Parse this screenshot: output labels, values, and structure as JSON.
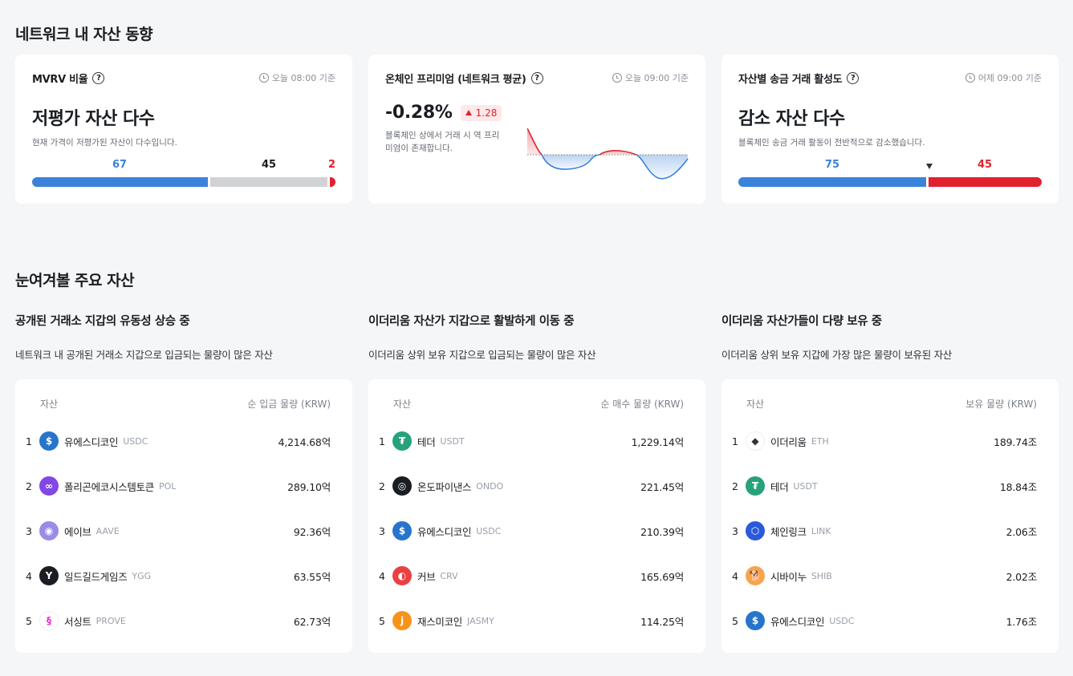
{
  "network": {
    "title": "네트워크 내 자산 동향",
    "mvrv": {
      "title": "MVRV 비율",
      "time": "오늘 08:00 기준",
      "value": "저평가 자산 다수",
      "desc": "현재 가격이 저평가된 자산이 다수입니다.",
      "undervalued": 67,
      "neutral": 45,
      "overvalued": 2,
      "colors": {
        "undervalued": "#3b82db",
        "neutral": "#d0d2d5",
        "overvalued": "#e0222e"
      }
    },
    "premium": {
      "title": "온체인 프리미엄 (네트워크 평균)",
      "time": "오늘 09:00 기준",
      "value": "-0.28%",
      "change": "1.28",
      "desc": "블록체인 상에서 거래 시 역 프리미엄이 존재합니다."
    },
    "activity": {
      "title": "자산별 송금 거래 활성도",
      "time": "어제 09:00 기준",
      "value": "감소 자산 다수",
      "desc": "블록체인 송금 거래 활동이 전반적으로 감소했습니다.",
      "decreased": 75,
      "increased": 45
    }
  },
  "watch": {
    "title": "눈여겨볼 주요 자산",
    "tables": [
      {
        "title": "공개된 거래소 지갑의 유동성 상승 중",
        "desc": "네트워크 내 공개된 거래소 지갑으로 입금되는 물량이 많은 자산",
        "col_asset": "자산",
        "col_value": "순 입금 물량 (KRW)",
        "rows": [
          {
            "rank": "1",
            "name": "유에스디코인",
            "symbol": "USDC",
            "value": "4,214.68억",
            "icon": "usdc-icon",
            "color": "#2775ca",
            "glyph": "$"
          },
          {
            "rank": "2",
            "name": "폴리곤에코시스템토큰",
            "symbol": "POL",
            "value": "289.10억",
            "icon": "pol-icon",
            "color": "#8247e5",
            "glyph": "∞"
          },
          {
            "rank": "3",
            "name": "에이브",
            "symbol": "AAVE",
            "value": "92.36억",
            "icon": "aave-icon",
            "color": "#9c8ae8",
            "glyph": "◉"
          },
          {
            "rank": "4",
            "name": "일드길드게임즈",
            "symbol": "YGG",
            "value": "63.55억",
            "icon": "ygg-icon",
            "color": "#1a1d21",
            "glyph": "Y"
          },
          {
            "rank": "5",
            "name": "서싱트",
            "symbol": "PROVE",
            "value": "62.73억",
            "icon": "prove-icon",
            "color": "#ffffff",
            "glyph": "§"
          }
        ]
      },
      {
        "title": "이더리움 자산가 지갑으로 활발하게 이동 중",
        "desc": "이더리움 상위 보유 지갑으로 입금되는 물량이 많은 자산",
        "col_asset": "자산",
        "col_value": "순 매수 물량 (KRW)",
        "rows": [
          {
            "rank": "1",
            "name": "테더",
            "symbol": "USDT",
            "value": "1,229.14억",
            "icon": "usdt-icon",
            "color": "#26a17b",
            "glyph": "₮"
          },
          {
            "rank": "2",
            "name": "온도파이낸스",
            "symbol": "ONDO",
            "value": "221.45억",
            "icon": "ondo-icon",
            "color": "#1a1d21",
            "glyph": "◎"
          },
          {
            "rank": "3",
            "name": "유에스디코인",
            "symbol": "USDC",
            "value": "210.39억",
            "icon": "usdc-icon",
            "color": "#2775ca",
            "glyph": "$"
          },
          {
            "rank": "4",
            "name": "커브",
            "symbol": "CRV",
            "value": "165.69억",
            "icon": "crv-icon",
            "color": "#e84142",
            "glyph": "◐"
          },
          {
            "rank": "5",
            "name": "재스미코인",
            "symbol": "JASMY",
            "value": "114.25억",
            "icon": "jasmy-icon",
            "color": "#f7931a",
            "glyph": "j"
          }
        ]
      },
      {
        "title": "이더리움 자산가들이 다량 보유 중",
        "desc": "이더리움 상위 보유 지갑에 가장 많은 물량이 보유된 자산",
        "col_asset": "자산",
        "col_value": "보유 물량 (KRW)",
        "rows": [
          {
            "rank": "1",
            "name": "이더리움",
            "symbol": "ETH",
            "value": "189.74조",
            "icon": "eth-icon",
            "color": "#ffffff",
            "glyph": "◆"
          },
          {
            "rank": "2",
            "name": "테더",
            "symbol": "USDT",
            "value": "18.84조",
            "icon": "usdt-icon",
            "color": "#26a17b",
            "glyph": "₮"
          },
          {
            "rank": "3",
            "name": "체인링크",
            "symbol": "LINK",
            "value": "2.06조",
            "icon": "link-icon",
            "color": "#2a5ada",
            "glyph": "⬡"
          },
          {
            "rank": "4",
            "name": "시바이누",
            "symbol": "SHIB",
            "value": "2.02조",
            "icon": "shib-icon",
            "color": "#f6a44c",
            "glyph": "🐕"
          },
          {
            "rank": "5",
            "name": "유에스디코인",
            "symbol": "USDC",
            "value": "1.76조",
            "icon": "usdc-icon",
            "color": "#2775ca",
            "glyph": "$"
          }
        ]
      }
    ]
  }
}
